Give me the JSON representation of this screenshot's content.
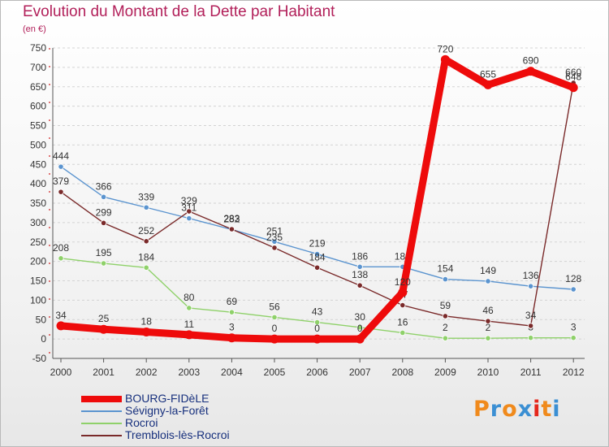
{
  "title": "Evolution du Montant de la Dette par Habitant",
  "unit_label": "(en €)",
  "logo": {
    "text": "Proxiti",
    "letter_colors": [
      "#f08a1c",
      "#3b8fd3",
      "#f08a1c",
      "#3b8fd3",
      "#e5281c",
      "#f08a1c",
      "#3b8fd3"
    ]
  },
  "chart_data": {
    "type": "line",
    "x": [
      "2000",
      "2001",
      "2002",
      "2003",
      "2004",
      "2005",
      "2006",
      "2007",
      "2008",
      "2009",
      "2010",
      "2011",
      "2012"
    ],
    "ylim": [
      -50,
      750
    ],
    "yticks": [
      -50,
      0,
      50,
      100,
      150,
      200,
      250,
      300,
      350,
      400,
      450,
      500,
      550,
      600,
      650,
      700,
      750
    ],
    "grid": "horizontal-dashed",
    "legend_position": "bottom-left",
    "series": [
      {
        "name": "Sévigny-la-Forêt",
        "color": "#5b94cf",
        "values": [
          444,
          366,
          339,
          311,
          282,
          251,
          219,
          186,
          186,
          154,
          149,
          136,
          128
        ],
        "labels": [
          "444",
          "366",
          "339",
          "311",
          "282",
          "251",
          "219",
          "186",
          "186",
          "154",
          "149",
          "136",
          "128"
        ]
      },
      {
        "name": "Rocroi",
        "color": "#8fd16a",
        "values": [
          208,
          195,
          184,
          80,
          69,
          56,
          43,
          30,
          16,
          2,
          2,
          3,
          3
        ],
        "labels": [
          "208",
          "195",
          "184",
          "80",
          "69",
          "56",
          "43",
          "30",
          "16",
          "2",
          "2",
          "3",
          "3"
        ]
      },
      {
        "name": "Tremblois-lès-Rocroi",
        "color": "#7a2a2a",
        "values": [
          379,
          299,
          252,
          329,
          283,
          235,
          184,
          138,
          87,
          59,
          46,
          34,
          660
        ],
        "labels": [
          "379",
          "299",
          "252",
          "329",
          "283",
          "235",
          "184",
          "138",
          "87",
          "59",
          "46",
          "34",
          "660"
        ]
      },
      {
        "name": "BOURG-FIDèLE",
        "color": "#ee0b0b",
        "values": [
          34,
          25,
          18,
          11,
          3,
          0,
          0,
          0,
          120,
          720,
          655,
          690,
          648
        ],
        "labels": [
          "34",
          "25",
          "18",
          "11",
          "3",
          "0",
          "0",
          "0",
          "120",
          "720",
          "655",
          "690",
          "648"
        ]
      }
    ]
  },
  "legend": [
    {
      "name": "BOURG-FIDèLE",
      "color": "#ee0b0b"
    },
    {
      "name": "Sévigny-la-Forêt",
      "color": "#5b94cf"
    },
    {
      "name": "Rocroi",
      "color": "#8fd16a"
    },
    {
      "name": "Tremblois-lès-Rocroi",
      "color": "#7a2a2a"
    }
  ]
}
